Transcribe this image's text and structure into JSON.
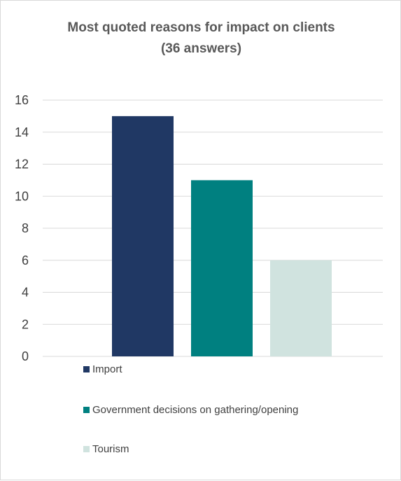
{
  "chart_data": {
    "type": "bar",
    "title": "Most quoted reasons for impact on clients",
    "subtitle": "(36 answers)",
    "xlabel": "",
    "ylabel": "",
    "ylim": [
      0,
      16
    ],
    "yticks": [
      0,
      2,
      4,
      6,
      8,
      10,
      12,
      14,
      16
    ],
    "grid": true,
    "legend_position": "bottom",
    "series": [
      {
        "name": "Import",
        "value": 15,
        "color": "#203864"
      },
      {
        "name": "Government decisions on gathering/opening",
        "value": 11,
        "color": "#008080"
      },
      {
        "name": "Tourism",
        "value": 6,
        "color": "#d0e3df"
      }
    ]
  }
}
